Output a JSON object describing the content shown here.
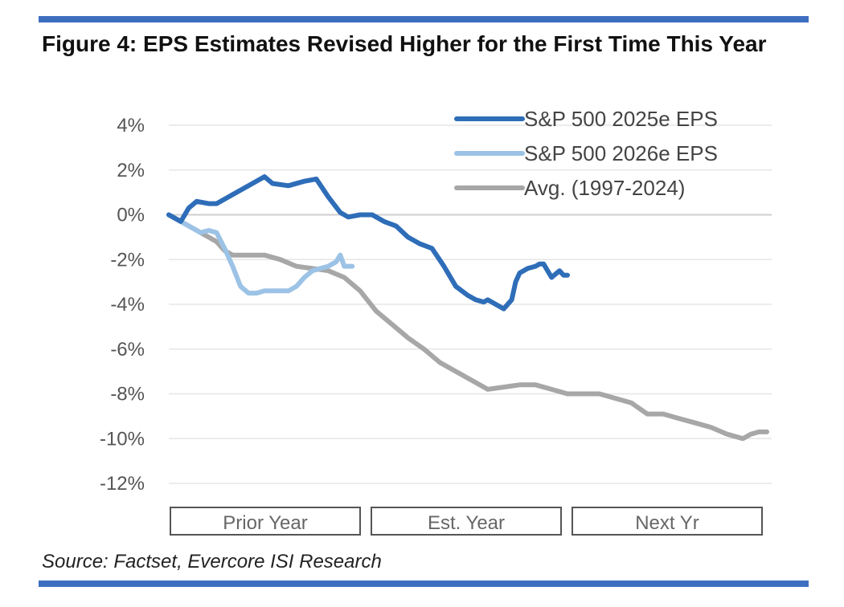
{
  "figure": {
    "title": "Figure 4: EPS Estimates Revised Higher for the First Time This Year",
    "source": "Source: Factset, Evercore ISI Research"
  },
  "colors": {
    "rule": "#3d6fc0",
    "grid": "#e6e6e6",
    "zero_line": "#cfcfcf"
  },
  "chart_data": {
    "type": "line",
    "title": "Figure 4: EPS Estimates Revised Higher for the First Time This Year",
    "xlabel": "",
    "ylabel": "",
    "x_unit": "trading-day index (0 = start of prior year, ~36 months total)",
    "xlim": [
      0,
      756
    ],
    "ylim": [
      -12,
      4
    ],
    "yticks": [
      4,
      2,
      0,
      -2,
      -4,
      -6,
      -8,
      -10,
      -12
    ],
    "ytick_labels": [
      "4%",
      "2%",
      "0%",
      "-2%",
      "-4%",
      "-6%",
      "-8%",
      "-10%",
      "-12%"
    ],
    "grid": true,
    "legend_position": "top-right",
    "periods": [
      {
        "label": "Prior Year",
        "x_start": 0,
        "x_end": 252
      },
      {
        "label": "Est. Year",
        "x_start": 252,
        "x_end": 504
      },
      {
        "label": "Next Yr",
        "x_start": 504,
        "x_end": 756
      }
    ],
    "series": [
      {
        "name": "S&P 500 2025e EPS",
        "color": "#2e6db8",
        "x": [
          0,
          15,
          25,
          35,
          50,
          60,
          80,
          100,
          120,
          130,
          150,
          170,
          185,
          200,
          215,
          225,
          240,
          255,
          270,
          285,
          300,
          315,
          330,
          345,
          360,
          375,
          385,
          395,
          400,
          410,
          420,
          430,
          435,
          440,
          450,
          460,
          465,
          470,
          480,
          490,
          495,
          500
        ],
        "values": [
          0.0,
          -0.3,
          0.3,
          0.6,
          0.5,
          0.5,
          0.9,
          1.3,
          1.7,
          1.4,
          1.3,
          1.5,
          1.6,
          0.8,
          0.1,
          -0.1,
          0.0,
          0.0,
          -0.3,
          -0.5,
          -1.0,
          -1.3,
          -1.5,
          -2.3,
          -3.2,
          -3.6,
          -3.8,
          -3.9,
          -3.8,
          -4.0,
          -4.2,
          -3.8,
          -3.0,
          -2.6,
          -2.4,
          -2.3,
          -2.2,
          -2.2,
          -2.8,
          -2.5,
          -2.7,
          -2.7
        ]
      },
      {
        "name": "S&P 500 2026e EPS",
        "color": "#9cc3e6",
        "x": [
          0,
          20,
          40,
          50,
          60,
          70,
          80,
          90,
          100,
          110,
          120,
          130,
          140,
          150,
          160,
          170,
          180,
          190,
          200,
          210,
          215,
          220,
          230
        ],
        "values": [
          0.0,
          -0.4,
          -0.8,
          -0.7,
          -0.8,
          -1.5,
          -2.3,
          -3.2,
          -3.5,
          -3.5,
          -3.4,
          -3.4,
          -3.4,
          -3.4,
          -3.2,
          -2.8,
          -2.5,
          -2.4,
          -2.3,
          -2.1,
          -1.8,
          -2.3,
          -2.3
        ]
      },
      {
        "name": "Avg. (1997-2024)",
        "color": "#a7a7a7",
        "x": [
          0,
          20,
          40,
          60,
          70,
          80,
          100,
          120,
          140,
          160,
          180,
          200,
          220,
          240,
          260,
          280,
          300,
          320,
          340,
          360,
          380,
          400,
          420,
          440,
          460,
          480,
          500,
          520,
          540,
          560,
          580,
          600,
          620,
          640,
          660,
          680,
          700,
          720,
          730,
          740,
          750
        ],
        "values": [
          0.0,
          -0.4,
          -0.8,
          -1.2,
          -1.6,
          -1.8,
          -1.8,
          -1.8,
          -2.0,
          -2.3,
          -2.4,
          -2.5,
          -2.8,
          -3.4,
          -4.3,
          -4.9,
          -5.5,
          -6.0,
          -6.6,
          -7.0,
          -7.4,
          -7.8,
          -7.7,
          -7.6,
          -7.6,
          -7.8,
          -8.0,
          -8.0,
          -8.0,
          -8.2,
          -8.4,
          -8.9,
          -8.9,
          -9.1,
          -9.3,
          -9.5,
          -9.8,
          -10.0,
          -9.8,
          -9.7,
          -9.7
        ]
      }
    ]
  }
}
